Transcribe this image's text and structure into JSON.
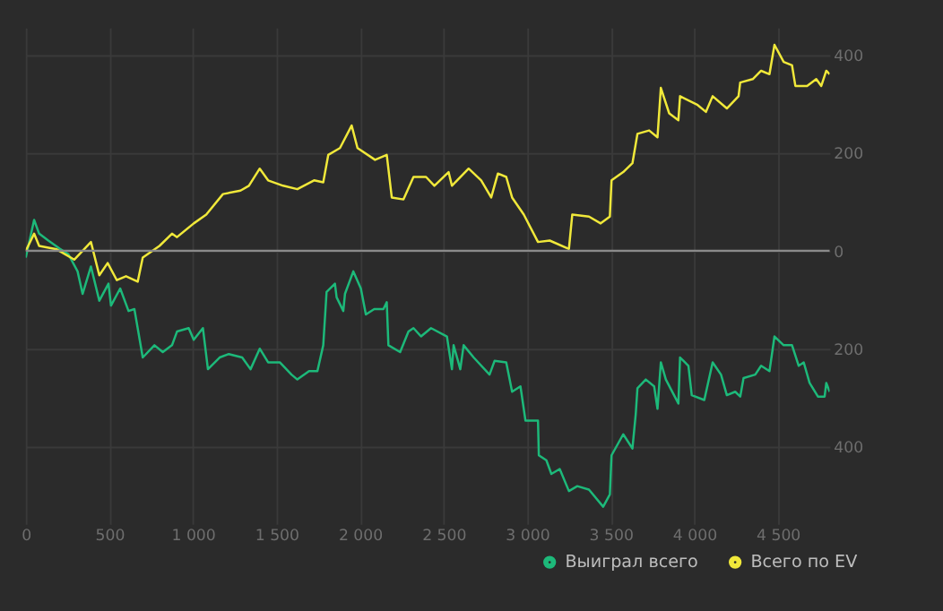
{
  "chart_data": {
    "type": "line",
    "xlim": [
      0,
      4810
    ],
    "ylim": [
      -558,
      456
    ],
    "xticks": [
      0,
      500,
      {
        "value": 1000,
        "label": "1 000"
      },
      {
        "value": 1500,
        "label": "1 500"
      },
      {
        "value": 2000,
        "label": "2 000"
      },
      {
        "value": 2500,
        "label": "2 500"
      },
      {
        "value": 3000,
        "label": "3 000"
      },
      {
        "value": 3500,
        "label": "3 500"
      },
      {
        "value": 4000,
        "label": "4 000"
      },
      {
        "value": 4500,
        "label": "4 500"
      }
    ],
    "yticks": [
      {
        "value": -400,
        "label": "400"
      },
      {
        "value": -200,
        "label": "200"
      },
      0,
      200,
      400
    ],
    "grid": true,
    "legend": "bottom right",
    "marker": "none",
    "line_style": "solid",
    "ref_lines": [
      {
        "axis": "y",
        "value": 0,
        "color": "#8a8a8a"
      }
    ],
    "series": [
      {
        "name": "Выиграл всего",
        "color": "#1db97a",
        "x": [
          0,
          50,
          80,
          135,
          205,
          255,
          310,
          340,
          390,
          440,
          495,
          510,
          565,
          615,
          650,
          700,
          770,
          820,
          875,
          905,
          975,
          1005,
          1060,
          1090,
          1160,
          1215,
          1295,
          1345,
          1400,
          1450,
          1520,
          1590,
          1625,
          1695,
          1745,
          1780,
          1800,
          1850,
          1860,
          1900,
          1910,
          1960,
          2005,
          2035,
          2085,
          2140,
          2160,
          2170,
          2240,
          2290,
          2320,
          2365,
          2425,
          2520,
          2550,
          2560,
          2600,
          2620,
          2680,
          2775,
          2805,
          2875,
          2910,
          2960,
          2990,
          3065,
          3070,
          3115,
          3145,
          3195,
          3250,
          3300,
          3370,
          3455,
          3495,
          3505,
          3575,
          3630,
          3650,
          3660,
          3710,
          3760,
          3780,
          3800,
          3830,
          3905,
          3915,
          3965,
          3985,
          4060,
          4110,
          4160,
          4195,
          4245,
          4275,
          4295,
          4365,
          4400,
          4450,
          4480,
          4535,
          4585,
          4625,
          4655,
          4690,
          4740,
          4780,
          4790,
          4810
        ],
        "values": [
          -14,
          63,
          35,
          21,
          4,
          -7,
          -42,
          -88,
          -32,
          -102,
          -67,
          -112,
          -77,
          -123,
          -119,
          -218,
          -193,
          -207,
          -193,
          -165,
          -158,
          -182,
          -158,
          -242,
          -218,
          -211,
          -218,
          -242,
          -200,
          -228,
          -228,
          -253,
          -263,
          -246,
          -246,
          -193,
          -84,
          -67,
          -95,
          -123,
          -88,
          -42,
          -77,
          -130,
          -119,
          -119,
          -105,
          -193,
          -207,
          -165,
          -158,
          -175,
          -158,
          -175,
          -242,
          -193,
          -242,
          -193,
          -218,
          -253,
          -225,
          -228,
          -288,
          -277,
          -347,
          -347,
          -418,
          -428,
          -456,
          -446,
          -491,
          -481,
          -488,
          -523,
          -498,
          -418,
          -375,
          -404,
          -333,
          -281,
          -263,
          -277,
          -323,
          -228,
          -263,
          -312,
          -218,
          -235,
          -295,
          -305,
          -228,
          -253,
          -295,
          -288,
          -298,
          -260,
          -253,
          -235,
          -246,
          -175,
          -193,
          -193,
          -235,
          -228,
          -270,
          -298,
          -298,
          -270,
          -288
        ]
      },
      {
        "name": "Всего по EV",
        "color": "#f0e83a",
        "x": [
          0,
          50,
          80,
          185,
          290,
          390,
          440,
          490,
          545,
          600,
          670,
          700,
          800,
          875,
          905,
          1005,
          1080,
          1180,
          1285,
          1335,
          1400,
          1450,
          1540,
          1625,
          1725,
          1780,
          1810,
          1880,
          1950,
          1985,
          2090,
          2160,
          2190,
          2260,
          2320,
          2395,
          2445,
          2530,
          2550,
          2650,
          2725,
          2785,
          2825,
          2875,
          2910,
          2980,
          3065,
          3135,
          3250,
          3270,
          3370,
          3440,
          3495,
          3505,
          3575,
          3630,
          3660,
          3730,
          3780,
          3800,
          3850,
          3905,
          3915,
          4020,
          4070,
          4110,
          4195,
          4265,
          4275,
          4350,
          4400,
          4450,
          4480,
          4535,
          4585,
          4605,
          4675,
          4730,
          4760,
          4790,
          4810
        ],
        "values": [
          0,
          35,
          10,
          3,
          -18,
          18,
          -50,
          -25,
          -60,
          -52,
          -63,
          -14,
          10,
          35,
          28,
          56,
          74,
          116,
          123,
          133,
          168,
          144,
          133,
          126,
          144,
          140,
          196,
          210,
          256,
          210,
          186,
          196,
          109,
          105,
          151,
          151,
          133,
          161,
          133,
          168,
          144,
          109,
          158,
          151,
          109,
          74,
          18,
          21,
          4,
          74,
          70,
          56,
          70,
          144,
          161,
          179,
          239,
          246,
          232,
          333,
          281,
          267,
          316,
          298,
          284,
          316,
          291,
          316,
          344,
          351,
          368,
          361,
          421,
          386,
          379,
          337,
          337,
          351,
          337,
          368,
          361
        ]
      }
    ]
  }
}
